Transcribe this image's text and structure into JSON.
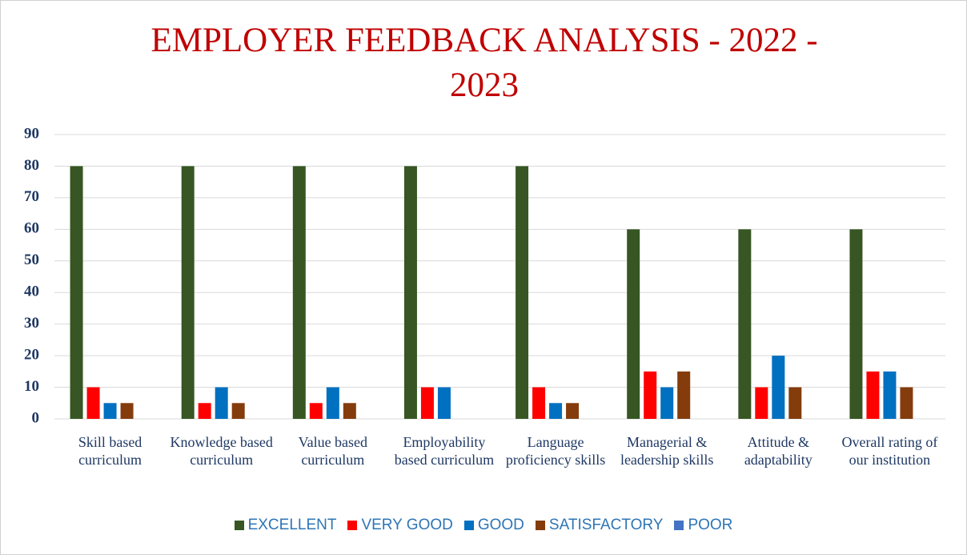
{
  "chart_data": {
    "type": "bar",
    "title": "EMPLOYER FEEDBACK ANALYSIS - 2022 - 2023",
    "categories": [
      "Skill based curriculum",
      "Knowledge based curriculum",
      "Value based curriculum",
      "Employability based curriculum",
      "Language proficiency skills",
      "Managerial & leadership skills",
      "Attitude & adaptability",
      "Overall rating of our institution"
    ],
    "series": [
      {
        "name": "EXCELLENT",
        "color": "#375623",
        "values": [
          80,
          80,
          80,
          80,
          80,
          60,
          60,
          60
        ]
      },
      {
        "name": "VERY GOOD",
        "color": "#ff0000",
        "values": [
          10,
          5,
          5,
          10,
          10,
          15,
          10,
          15
        ]
      },
      {
        "name": "GOOD",
        "color": "#0070c0",
        "values": [
          5,
          10,
          10,
          10,
          5,
          10,
          20,
          15
        ]
      },
      {
        "name": "SATISFACTORY",
        "color": "#843c0c",
        "values": [
          5,
          5,
          5,
          0,
          5,
          15,
          10,
          10
        ]
      },
      {
        "name": "POOR",
        "color": "#4472c4",
        "values": [
          0,
          0,
          0,
          0,
          0,
          0,
          0,
          0
        ]
      }
    ],
    "ylim": [
      0,
      90
    ],
    "yticks": [
      0,
      10,
      20,
      30,
      40,
      50,
      60,
      70,
      80,
      90
    ],
    "grid": true,
    "legend": "bottom"
  }
}
